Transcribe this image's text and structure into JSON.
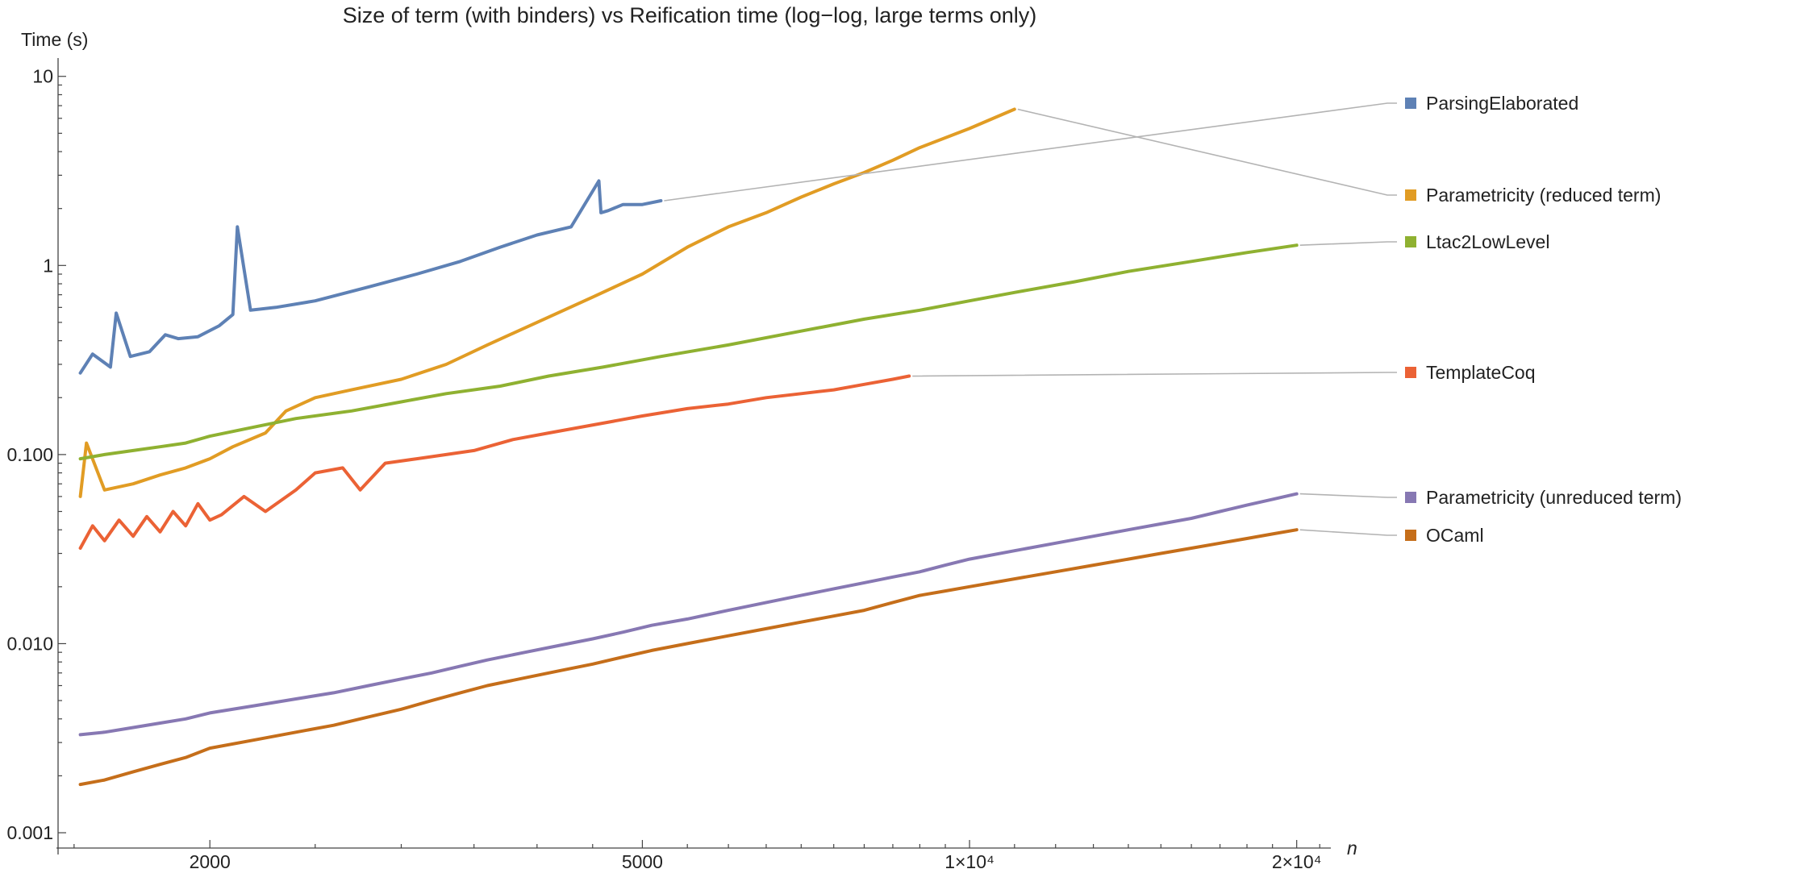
{
  "chart_data": {
    "type": "line",
    "title": "Size of term (with binders) vs Reification time (log−log, large terms only)",
    "xlabel": "n",
    "ylabel": "Time (s)",
    "xscale": "log",
    "yscale": "log",
    "xlim": [
      1450,
      21500
    ],
    "ylim": [
      0.00083,
      12.5
    ],
    "grid": false,
    "legend_position": "right",
    "x_ticks": [
      {
        "value": 2000,
        "label": "2000"
      },
      {
        "value": 5000,
        "label": "5000"
      },
      {
        "value": 10000,
        "label": "1×10⁴"
      },
      {
        "value": 20000,
        "label": "2×10⁴"
      }
    ],
    "y_ticks": [
      {
        "value": 0.001,
        "label": "0.001"
      },
      {
        "value": 0.01,
        "label": "0.010"
      },
      {
        "value": 0.1,
        "label": "0.100"
      },
      {
        "value": 1,
        "label": "1"
      },
      {
        "value": 10,
        "label": "10"
      }
    ],
    "series": [
      {
        "name": "ParsingElaborated",
        "color": "#5e81b5",
        "x": [
          1520,
          1560,
          1620,
          1640,
          1690,
          1760,
          1820,
          1870,
          1950,
          2040,
          2100,
          2120,
          2180,
          2300,
          2500,
          2800,
          3100,
          3400,
          3700,
          4000,
          4300,
          4560,
          4580,
          4650,
          4800,
          5000,
          5200
        ],
        "y": [
          0.27,
          0.34,
          0.29,
          0.56,
          0.33,
          0.35,
          0.43,
          0.41,
          0.42,
          0.48,
          0.55,
          1.6,
          0.58,
          0.6,
          0.65,
          0.77,
          0.9,
          1.05,
          1.25,
          1.45,
          1.6,
          2.8,
          1.9,
          1.95,
          2.1,
          2.1,
          2.2
        ]
      },
      {
        "name": "Parametricity (reduced term)",
        "color": "#e19c24",
        "x": [
          1520,
          1540,
          1600,
          1700,
          1800,
          1900,
          2000,
          2100,
          2250,
          2350,
          2500,
          2700,
          3000,
          3300,
          3600,
          4000,
          4500,
          5000,
          5500,
          6000,
          6500,
          7000,
          7500,
          8000,
          8500,
          9000,
          10000,
          11000
        ],
        "y": [
          0.06,
          0.115,
          0.065,
          0.07,
          0.078,
          0.085,
          0.095,
          0.11,
          0.13,
          0.17,
          0.2,
          0.22,
          0.25,
          0.3,
          0.38,
          0.5,
          0.68,
          0.9,
          1.25,
          1.6,
          1.9,
          2.3,
          2.7,
          3.1,
          3.6,
          4.2,
          5.3,
          6.7
        ]
      },
      {
        "name": "Ltac2LowLevel",
        "color": "#8fb131",
        "x": [
          1520,
          1600,
          1700,
          1800,
          1900,
          2000,
          2200,
          2400,
          2700,
          3000,
          3300,
          3700,
          4100,
          4600,
          5200,
          6000,
          7000,
          8000,
          9000,
          10000,
          11000,
          12500,
          14000,
          16000,
          18000,
          20000
        ],
        "y": [
          0.095,
          0.1,
          0.105,
          0.11,
          0.115,
          0.125,
          0.14,
          0.155,
          0.17,
          0.19,
          0.21,
          0.23,
          0.26,
          0.29,
          0.33,
          0.38,
          0.45,
          0.52,
          0.58,
          0.65,
          0.72,
          0.82,
          0.93,
          1.05,
          1.17,
          1.28
        ]
      },
      {
        "name": "TemplateCoq",
        "color": "#eb6235",
        "x": [
          1520,
          1560,
          1600,
          1650,
          1700,
          1750,
          1800,
          1850,
          1900,
          1950,
          2000,
          2050,
          2150,
          2250,
          2400,
          2500,
          2650,
          2750,
          2900,
          3100,
          3300,
          3500,
          3800,
          4100,
          4400,
          4700,
          5000,
          5500,
          6000,
          6500,
          7000,
          7500,
          8000,
          8500,
          8800
        ],
        "y": [
          0.032,
          0.042,
          0.035,
          0.045,
          0.037,
          0.047,
          0.039,
          0.05,
          0.042,
          0.055,
          0.045,
          0.048,
          0.06,
          0.05,
          0.065,
          0.08,
          0.085,
          0.065,
          0.09,
          0.095,
          0.1,
          0.105,
          0.12,
          0.13,
          0.14,
          0.15,
          0.16,
          0.175,
          0.185,
          0.2,
          0.21,
          0.22,
          0.235,
          0.25,
          0.26
        ]
      },
      {
        "name": "Parametricity (unreduced term)",
        "color": "#8778b3",
        "x": [
          1520,
          1600,
          1700,
          1800,
          1900,
          2000,
          2200,
          2400,
          2600,
          2800,
          3000,
          3200,
          3400,
          3600,
          3900,
          4200,
          4500,
          4800,
          5100,
          5500,
          6000,
          6500,
          7000,
          7500,
          8000,
          8500,
          9000,
          9500,
          10000,
          11000,
          12000,
          13000,
          14000,
          15000,
          16000,
          17000,
          18000,
          19000,
          20000
        ],
        "y": [
          0.0033,
          0.0034,
          0.0036,
          0.0038,
          0.004,
          0.0043,
          0.0047,
          0.0051,
          0.0055,
          0.006,
          0.0065,
          0.007,
          0.0076,
          0.0082,
          0.009,
          0.0098,
          0.0106,
          0.0115,
          0.0125,
          0.0135,
          0.015,
          0.0165,
          0.018,
          0.0195,
          0.021,
          0.0225,
          0.024,
          0.026,
          0.028,
          0.031,
          0.034,
          0.037,
          0.04,
          0.043,
          0.046,
          0.05,
          0.054,
          0.058,
          0.062
        ]
      },
      {
        "name": "OCaml",
        "color": "#c56e1a",
        "x": [
          1520,
          1600,
          1700,
          1800,
          1900,
          2000,
          2200,
          2400,
          2600,
          2800,
          3000,
          3200,
          3400,
          3600,
          3900,
          4200,
          4500,
          4800,
          5100,
          5500,
          6000,
          6500,
          7000,
          7500,
          8000,
          8500,
          9000,
          9500,
          10000,
          11000,
          12000,
          13000,
          14000,
          15000,
          16000,
          17000,
          18000,
          19000,
          20000
        ],
        "y": [
          0.0018,
          0.0019,
          0.0021,
          0.0023,
          0.0025,
          0.0028,
          0.0031,
          0.0034,
          0.0037,
          0.0041,
          0.0045,
          0.005,
          0.0055,
          0.006,
          0.0066,
          0.0072,
          0.0078,
          0.0085,
          0.0092,
          0.01,
          0.011,
          0.012,
          0.013,
          0.014,
          0.015,
          0.0165,
          0.018,
          0.019,
          0.02,
          0.022,
          0.024,
          0.026,
          0.028,
          0.03,
          0.032,
          0.034,
          0.036,
          0.038,
          0.04
        ]
      }
    ]
  }
}
